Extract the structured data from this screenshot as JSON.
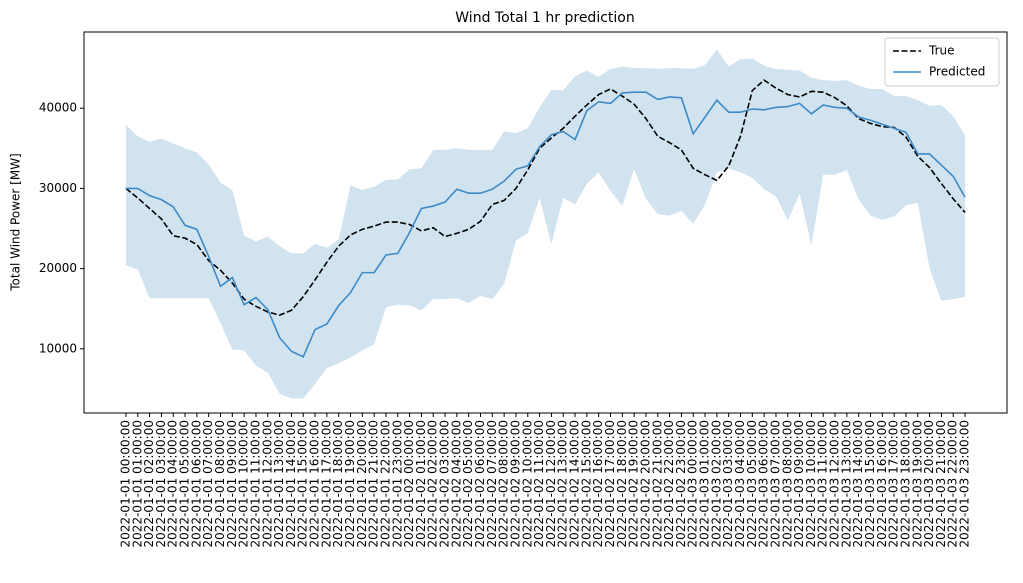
{
  "chart_data": {
    "type": "line",
    "title": "Wind Total 1 hr prediction",
    "y_label": "Total Wind Power [MW]",
    "categories": [
      "2022-01-01 00:00:00",
      "2022-01-01 01:00:00",
      "2022-01-01 02:00:00",
      "2022-01-01 03:00:00",
      "2022-01-01 04:00:00",
      "2022-01-01 05:00:00",
      "2022-01-01 06:00:00",
      "2022-01-01 07:00:00",
      "2022-01-01 08:00:00",
      "2022-01-01 09:00:00",
      "2022-01-01 10:00:00",
      "2022-01-01 11:00:00",
      "2022-01-01 12:00:00",
      "2022-01-01 13:00:00",
      "2022-01-01 14:00:00",
      "2022-01-01 15:00:00",
      "2022-01-01 16:00:00",
      "2022-01-01 17:00:00",
      "2022-01-01 18:00:00",
      "2022-01-01 19:00:00",
      "2022-01-01 20:00:00",
      "2022-01-01 21:00:00",
      "2022-01-01 22:00:00",
      "2022-01-01 23:00:00",
      "2022-01-02 00:00:00",
      "2022-01-02 01:00:00",
      "2022-01-02 02:00:00",
      "2022-01-02 03:00:00",
      "2022-01-02 04:00:00",
      "2022-01-02 05:00:00",
      "2022-01-02 06:00:00",
      "2022-01-02 07:00:00",
      "2022-01-02 08:00:00",
      "2022-01-02 09:00:00",
      "2022-01-02 10:00:00",
      "2022-01-02 11:00:00",
      "2022-01-02 12:00:00",
      "2022-01-02 13:00:00",
      "2022-01-02 14:00:00",
      "2022-01-02 15:00:00",
      "2022-01-02 16:00:00",
      "2022-01-02 17:00:00",
      "2022-01-02 18:00:00",
      "2022-01-02 19:00:00",
      "2022-01-02 20:00:00",
      "2022-01-02 21:00:00",
      "2022-01-02 22:00:00",
      "2022-01-02 23:00:00",
      "2022-01-03 00:00:00",
      "2022-01-03 01:00:00",
      "2022-01-03 02:00:00",
      "2022-01-03 03:00:00",
      "2022-01-03 04:00:00",
      "2022-01-03 05:00:00",
      "2022-01-03 06:00:00",
      "2022-01-03 07:00:00",
      "2022-01-03 08:00:00",
      "2022-01-03 09:00:00",
      "2022-01-03 10:00:00",
      "2022-01-03 11:00:00",
      "2022-01-03 12:00:00",
      "2022-01-03 13:00:00",
      "2022-01-03 14:00:00",
      "2022-01-03 15:00:00",
      "2022-01-03 16:00:00",
      "2022-01-03 17:00:00",
      "2022-01-03 18:00:00",
      "2022-01-03 19:00:00",
      "2022-01-03 20:00:00",
      "2022-01-03 21:00:00",
      "2022-01-03 22:00:00",
      "2022-01-03 23:00:00"
    ],
    "series": [
      {
        "name": "True",
        "color": "#000000",
        "dashed": true,
        "values": [
          30000,
          28800,
          27500,
          26200,
          24100,
          23800,
          23000,
          21000,
          19800,
          18200,
          16200,
          15300,
          14600,
          14200,
          14800,
          16500,
          18600,
          20800,
          22800,
          24200,
          24900,
          25300,
          25800,
          25800,
          25500,
          24700,
          25100,
          24000,
          24400,
          24900,
          25900,
          28000,
          28500,
          30000,
          32300,
          35000,
          36300,
          37500,
          39000,
          40400,
          41700,
          42400,
          41500,
          40500,
          38700,
          36500,
          35700,
          34800,
          32500,
          31700,
          31000,
          32800,
          36500,
          42200,
          43500,
          42500,
          41700,
          41400,
          42100,
          42000,
          41300,
          40300,
          38700,
          38100,
          37700,
          37600,
          36400,
          34000,
          32600,
          30600,
          28700,
          27000
        ]
      },
      {
        "name": "Predicted",
        "color": "#3d8ac6",
        "dashed": false,
        "values": [
          30000,
          30000,
          29100,
          28600,
          27700,
          25400,
          24900,
          21500,
          17800,
          18900,
          15500,
          16400,
          14900,
          11400,
          9700,
          9000,
          12400,
          13100,
          15400,
          17000,
          19500,
          19500,
          21700,
          21900,
          24500,
          27500,
          27800,
          28300,
          29900,
          29400,
          29400,
          29900,
          30900,
          32400,
          32800,
          35200,
          36700,
          37100,
          36100,
          39700,
          40800,
          40600,
          41900,
          42000,
          42000,
          41100,
          41400,
          41300,
          36800,
          38900,
          41000,
          39500,
          39500,
          39900,
          39800,
          40100,
          40200,
          40600,
          39300,
          40400,
          40100,
          40000,
          38900,
          38500,
          38000,
          37500,
          37000,
          34300,
          34300,
          32900,
          31500,
          28900
        ]
      }
    ],
    "band": {
      "color": "#d2e3f0",
      "upper": [
        37900,
        36500,
        35800,
        36200,
        35600,
        35000,
        34500,
        33000,
        30700,
        29800,
        24100,
        23400,
        24000,
        22800,
        21900,
        21900,
        23100,
        22600,
        23600,
        30400,
        29800,
        30200,
        31100,
        31100,
        32400,
        32500,
        34800,
        34800,
        35000,
        34800,
        34800,
        34800,
        37100,
        36900,
        37500,
        40100,
        42300,
        42200,
        44000,
        44700,
        43900,
        44900,
        45200,
        45000,
        45000,
        44900,
        45000,
        45000,
        44900,
        45400,
        47300,
        45200,
        46100,
        46200,
        45300,
        44900,
        44800,
        44700,
        43800,
        43500,
        43400,
        43500,
        42800,
        42400,
        42400,
        41500,
        41500,
        41000,
        40300,
        40400,
        39000,
        36600
      ],
      "lower": [
        20400,
        19900,
        16300,
        16300,
        16300,
        16300,
        16300,
        16300,
        13200,
        9900,
        9800,
        7900,
        7000,
        4400,
        3800,
        3800,
        5600,
        7600,
        8200,
        8900,
        9800,
        10600,
        15200,
        15500,
        15400,
        14800,
        16200,
        16200,
        16300,
        15700,
        16600,
        16200,
        18100,
        23500,
        24400,
        28800,
        23100,
        28800,
        28000,
        30600,
        32000,
        29700,
        27800,
        32400,
        28700,
        26800,
        26600,
        27200,
        25600,
        28000,
        32000,
        32500,
        32000,
        31300,
        29900,
        29000,
        26000,
        29300,
        22900,
        31700,
        31700,
        32300,
        28600,
        26600,
        26100,
        26500,
        27900,
        28200,
        20000,
        16000,
        16200,
        16500
      ]
    },
    "ylim": [
      2000,
      49500
    ],
    "yticks": [
      10000,
      20000,
      30000,
      40000
    ],
    "legend": "upper right"
  }
}
